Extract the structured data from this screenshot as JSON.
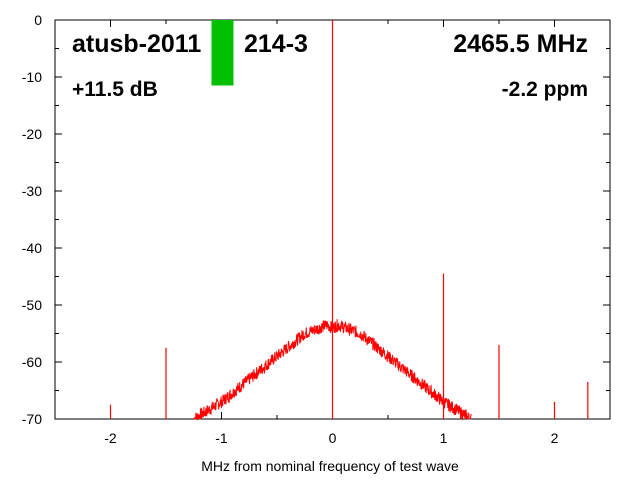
{
  "chart_data": {
    "type": "line",
    "title": "",
    "xlabel": "MHz from nominal frequency of test wave",
    "ylabel": "",
    "xlim": [
      -2.5,
      2.5
    ],
    "ylim": [
      -70,
      0
    ],
    "x_ticks": [
      -2,
      -1,
      0,
      1,
      2
    ],
    "y_ticks": [
      0,
      -10,
      -20,
      -30,
      -40,
      -50,
      -60,
      -70
    ],
    "grid": false,
    "annotations": {
      "device": "atusb-2011",
      "device_suffix": "214-3",
      "frequency": "2465.5 MHz",
      "gain": "+11.5 dB",
      "ppm": "-2.2 ppm"
    },
    "level_bar": {
      "color": "#00c000",
      "value_db": -11.5
    },
    "series": [
      {
        "color": "#ff0000",
        "noise_floor": {
          "x": [
            -1.25,
            -1.0,
            -0.75,
            -0.5,
            -0.25,
            -0.05,
            0.0,
            0.05,
            0.25,
            0.5,
            0.75,
            1.0,
            1.25
          ],
          "y": [
            -70,
            -67,
            -63,
            -59,
            -55,
            -53.5,
            -54,
            -53.5,
            -55,
            -59,
            -63,
            -67,
            -70
          ]
        },
        "spikes": [
          {
            "x": 0.0,
            "y": 0.0
          },
          {
            "x": 1.0,
            "y": -44.5
          },
          {
            "x": 1.5,
            "y": -57
          },
          {
            "x": -1.5,
            "y": -57.5
          },
          {
            "x": -2.0,
            "y": -67.5
          },
          {
            "x": 2.3,
            "y": -63.5
          },
          {
            "x": 2.0,
            "y": -67
          },
          {
            "x": 1.2,
            "y": -68.5
          }
        ]
      }
    ]
  }
}
